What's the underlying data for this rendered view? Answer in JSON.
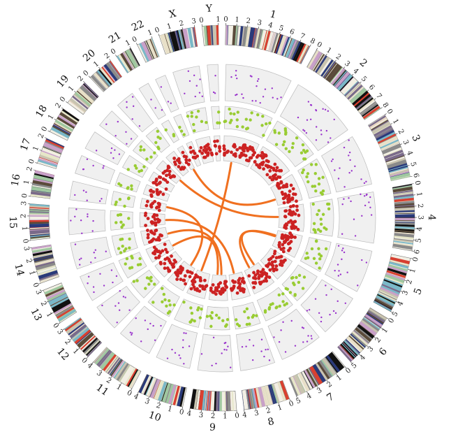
{
  "chart_data": {
    "type": "circos",
    "chromosomes": [
      {
        "name": "1",
        "ticks": [
          "0",
          "1",
          "2",
          "3",
          "4",
          "5",
          "6",
          "7",
          "8"
        ]
      },
      {
        "name": "2",
        "ticks": [
          "0",
          "1",
          "2",
          "3",
          "4",
          "5",
          "6",
          "7",
          "8"
        ]
      },
      {
        "name": "3",
        "ticks": [
          "0",
          "1",
          "2",
          "3",
          "4",
          "5",
          "6"
        ]
      },
      {
        "name": "4",
        "ticks": [
          "0",
          "1",
          "2",
          "3",
          "4",
          "5",
          "6"
        ]
      },
      {
        "name": "5",
        "ticks": [
          "0",
          "1",
          "2",
          "3",
          "4",
          "5"
        ]
      },
      {
        "name": "6",
        "ticks": [
          "0",
          "1",
          "2",
          "3",
          "4",
          "5"
        ]
      },
      {
        "name": "7",
        "ticks": [
          "0",
          "1",
          "2",
          "3",
          "4",
          "5"
        ]
      },
      {
        "name": "8",
        "ticks": [
          "0",
          "1",
          "2",
          "3",
          "4"
        ]
      },
      {
        "name": "9",
        "ticks": [
          "0",
          "1",
          "2",
          "3",
          "4"
        ]
      },
      {
        "name": "10",
        "ticks": [
          "0",
          "1",
          "2",
          "3",
          "4"
        ]
      },
      {
        "name": "11",
        "ticks": [
          "0",
          "1",
          "2",
          "3",
          "4"
        ]
      },
      {
        "name": "12",
        "ticks": [
          "0",
          "1",
          "2",
          "3"
        ]
      },
      {
        "name": "13",
        "ticks": [
          "0",
          "1",
          "2",
          "3"
        ]
      },
      {
        "name": "14",
        "ticks": [
          "0",
          "1",
          "2",
          "3"
        ]
      },
      {
        "name": "15",
        "ticks": [
          "0",
          "1",
          "2",
          "3"
        ]
      },
      {
        "name": "16",
        "ticks": [
          "0",
          "1",
          "2"
        ]
      },
      {
        "name": "17",
        "ticks": [
          "0",
          "1",
          "2"
        ]
      },
      {
        "name": "18",
        "ticks": [
          "0",
          "1",
          "2"
        ]
      },
      {
        "name": "19",
        "ticks": [
          "0",
          "1",
          "2"
        ]
      },
      {
        "name": "20",
        "ticks": [
          "0",
          "1",
          "2"
        ]
      },
      {
        "name": "21",
        "ticks": [
          "0",
          "1"
        ]
      },
      {
        "name": "22",
        "ticks": [
          "0",
          "1"
        ]
      },
      {
        "name": "X",
        "ticks": [
          "0",
          "1",
          "2",
          "3"
        ]
      },
      {
        "name": "Y",
        "ticks": [
          "0",
          "1"
        ]
      }
    ],
    "band_colors": [
      "#111111",
      "#5a4a3a",
      "#c9c4b0",
      "#e8e0c8",
      "#d94030",
      "#7a6a8a",
      "#c8a0c8",
      "#7ab8c8",
      "#2a3a7a",
      "#a0c8a0",
      "#e6e6c8",
      "#8a8a8a"
    ],
    "tracks": [
      {
        "name": "",
        "color": "#9933cc",
        "kind": "scatter"
      },
      {
        "name": "",
        "color": "#99cc33",
        "kind": "scatter"
      },
      {
        "name": "",
        "color": "#cc2222",
        "kind": "scatter"
      }
    ],
    "links": [
      {
        "from": "1",
        "to": "10"
      },
      {
        "from": "3",
        "to": "21"
      },
      {
        "from": "4",
        "to": "19"
      },
      {
        "from": "5",
        "to": "7"
      },
      {
        "from": "5",
        "to": "7"
      },
      {
        "from": "9",
        "to": "13"
      },
      {
        "from": "9",
        "to": "14"
      },
      {
        "from": "11",
        "to": "16"
      },
      {
        "from": "8",
        "to": "15"
      }
    ],
    "link_color": "#f07020",
    "track_bg": "#f0f0f0",
    "track_border": "#bbbbbb"
  }
}
